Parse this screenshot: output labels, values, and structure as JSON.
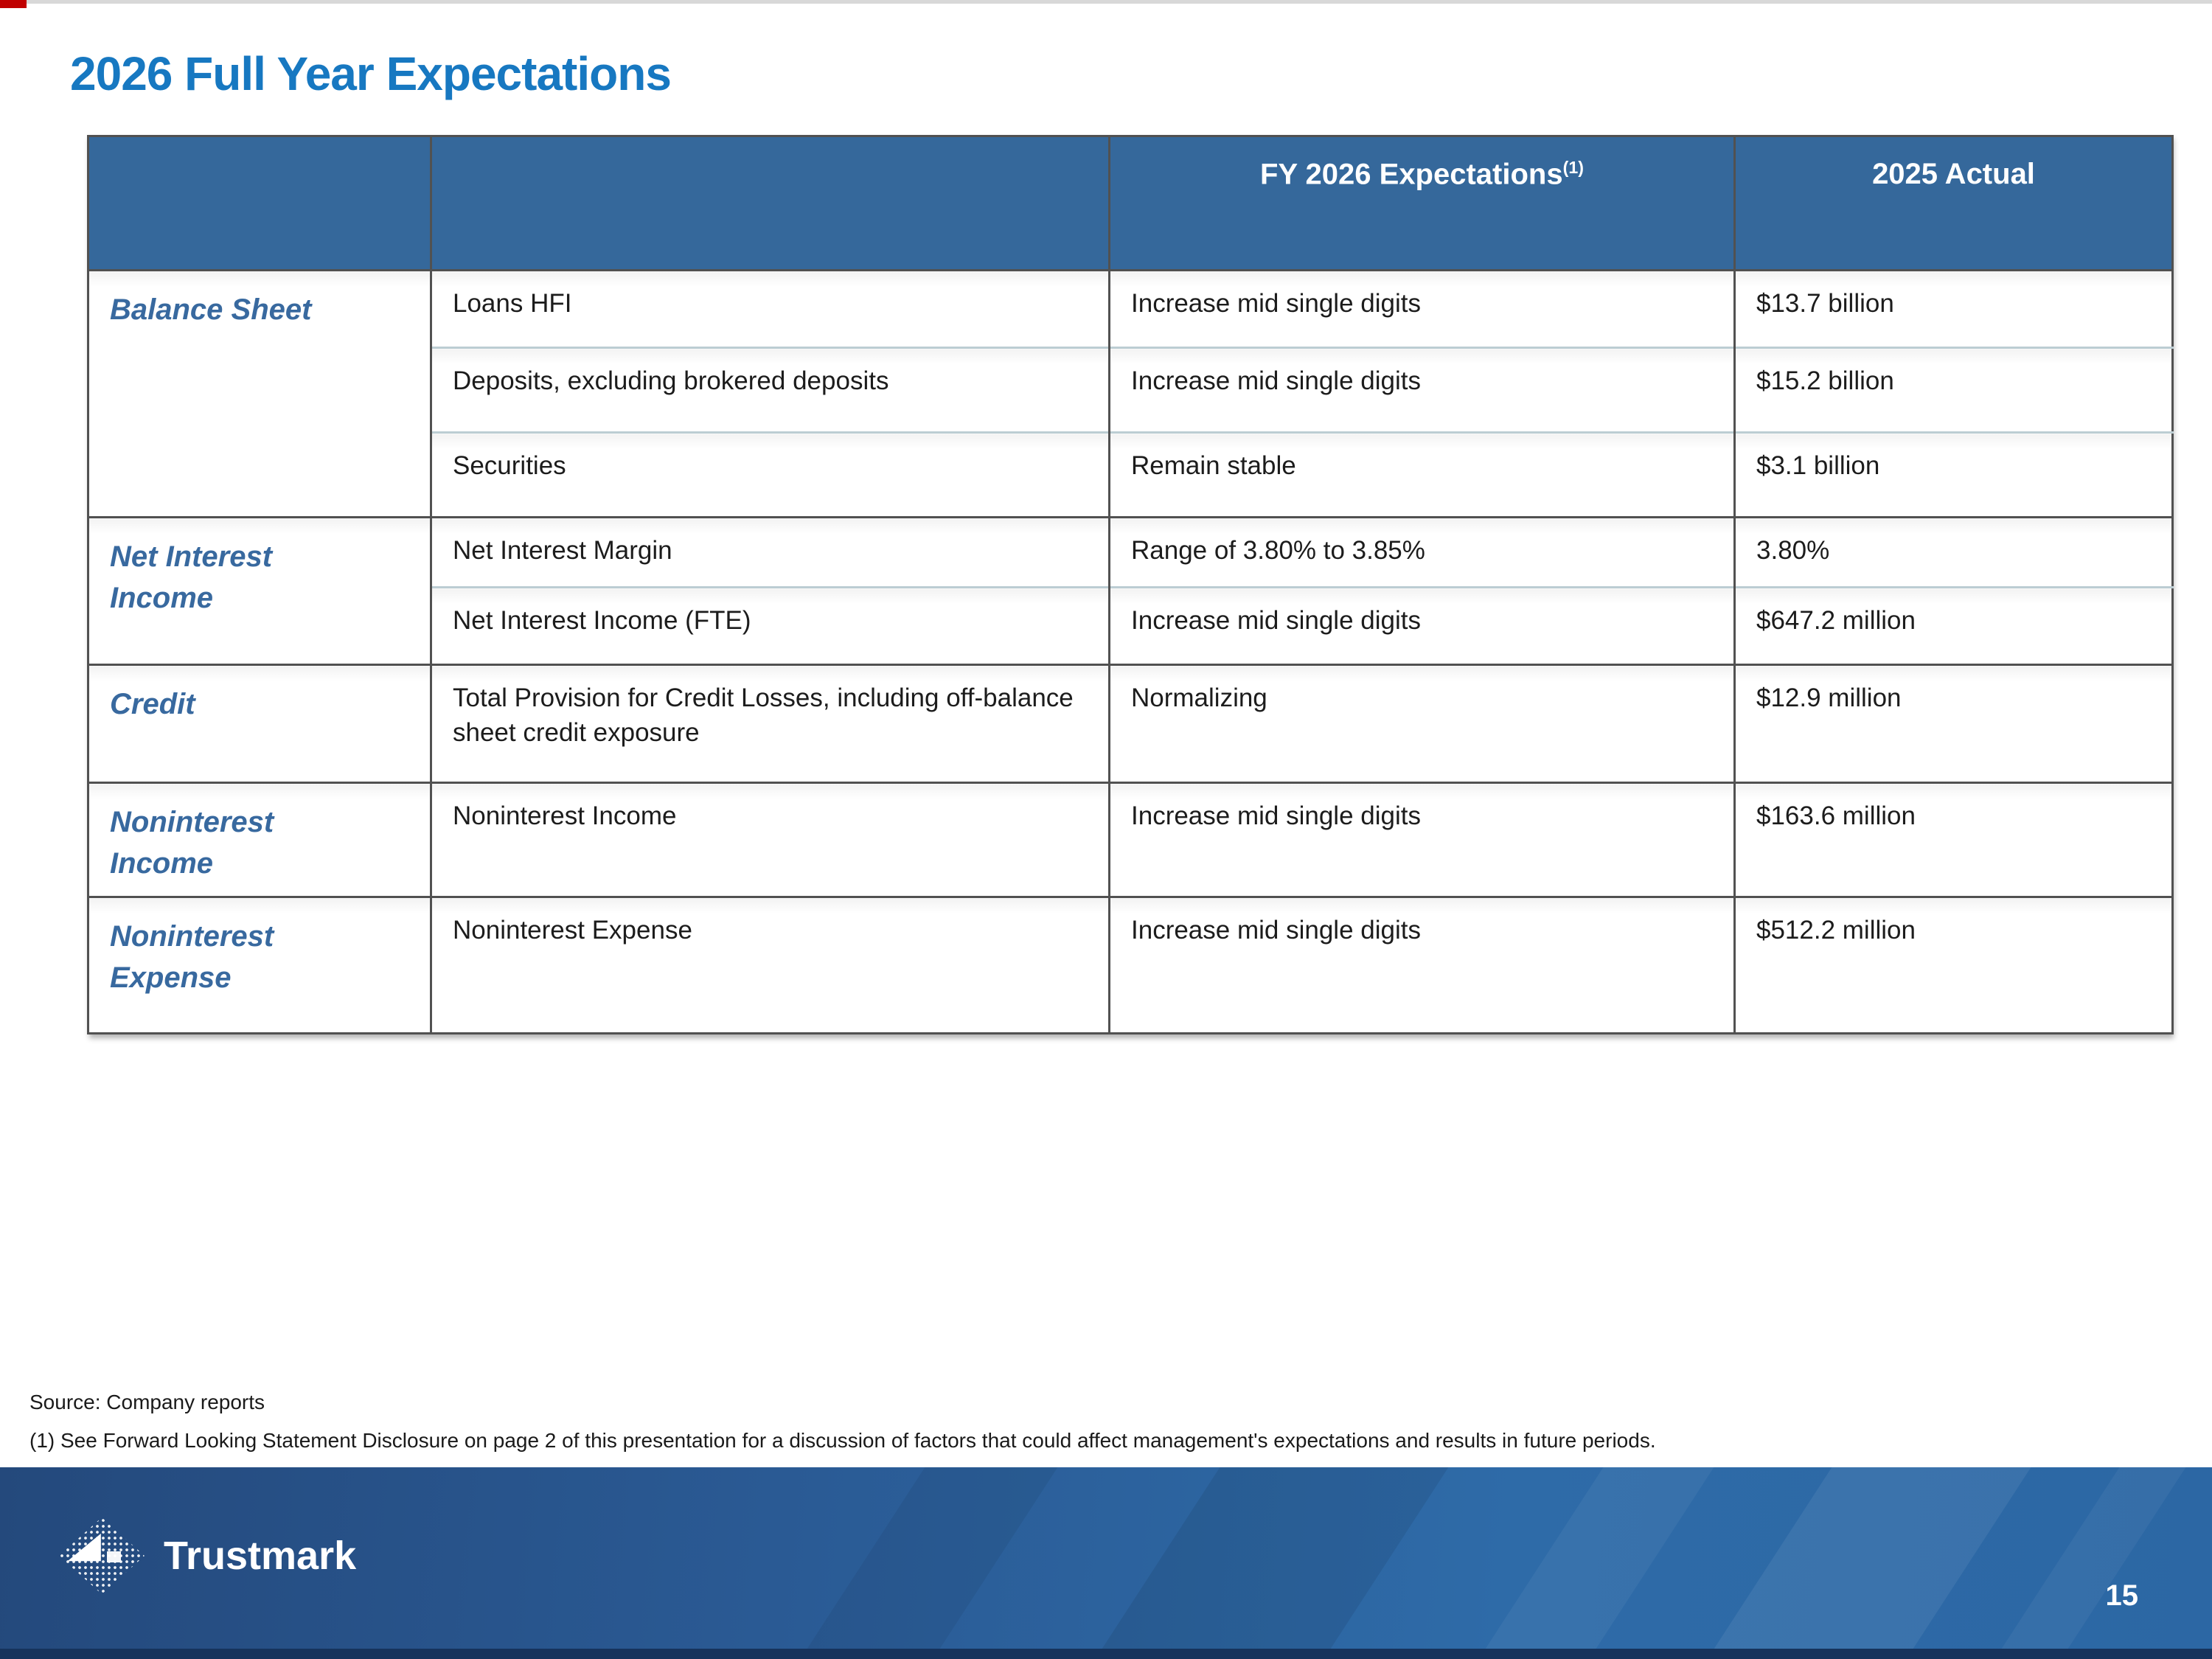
{
  "slide": {
    "title": "2026 Full Year Expectations",
    "page_number": "15",
    "source_line": "Source: Company reports",
    "footnote_line": "(1) See Forward Looking Statement Disclosure on page 2 of this presentation for a discussion of factors that could affect management's expectations and results in future periods.",
    "logo_text": "Trustmark"
  },
  "table": {
    "header": {
      "category": "",
      "item": "",
      "expectations_label": "FY 2026 Expectations",
      "expectations_sup": "(1)",
      "actual_label": "2025 Actual"
    },
    "rows": [
      {
        "category": "Balance Sheet",
        "item": "Loans HFI",
        "expectation": "Increase mid single digits",
        "actual": "$13.7 billion"
      },
      {
        "item": "Deposits, excluding brokered deposits",
        "expectation": "Increase mid single digits",
        "actual": "$15.2 billion"
      },
      {
        "item": "Securities",
        "expectation": "Remain stable",
        "actual": "$3.1 billion"
      },
      {
        "category": "Net Interest Income",
        "item": "Net Interest Margin",
        "expectation": "Range of 3.80% to 3.85%",
        "actual": "3.80%"
      },
      {
        "item": "Net Interest Income (FTE)",
        "expectation": "Increase mid single digits",
        "actual": "$647.2 million"
      },
      {
        "category": "Credit",
        "item": "Total Provision for Credit Losses, including off-balance sheet credit exposure",
        "expectation": "Normalizing",
        "actual": "$12.9 million"
      },
      {
        "category": "Noninterest Income",
        "item": "Noninterest Income",
        "expectation": "Increase mid single digits",
        "actual": "$163.6 million"
      },
      {
        "category": "Noninterest Expense",
        "item": "Noninterest Expense",
        "expectation": "Increase mid single digits",
        "actual": "$512.2 million"
      }
    ]
  },
  "colors": {
    "title_blue": "#1778c1",
    "header_bg": "#35689b",
    "category_text": "#38699f",
    "body_text": "#1c1c1c",
    "border_dark": "#515151",
    "border_light": "#bccdd3",
    "footer_gradient_left": "#24497c",
    "footer_gradient_right": "#2e6ba8",
    "footer_bottom_strip": "#16335c",
    "corner_mark_red": "#c00000"
  }
}
